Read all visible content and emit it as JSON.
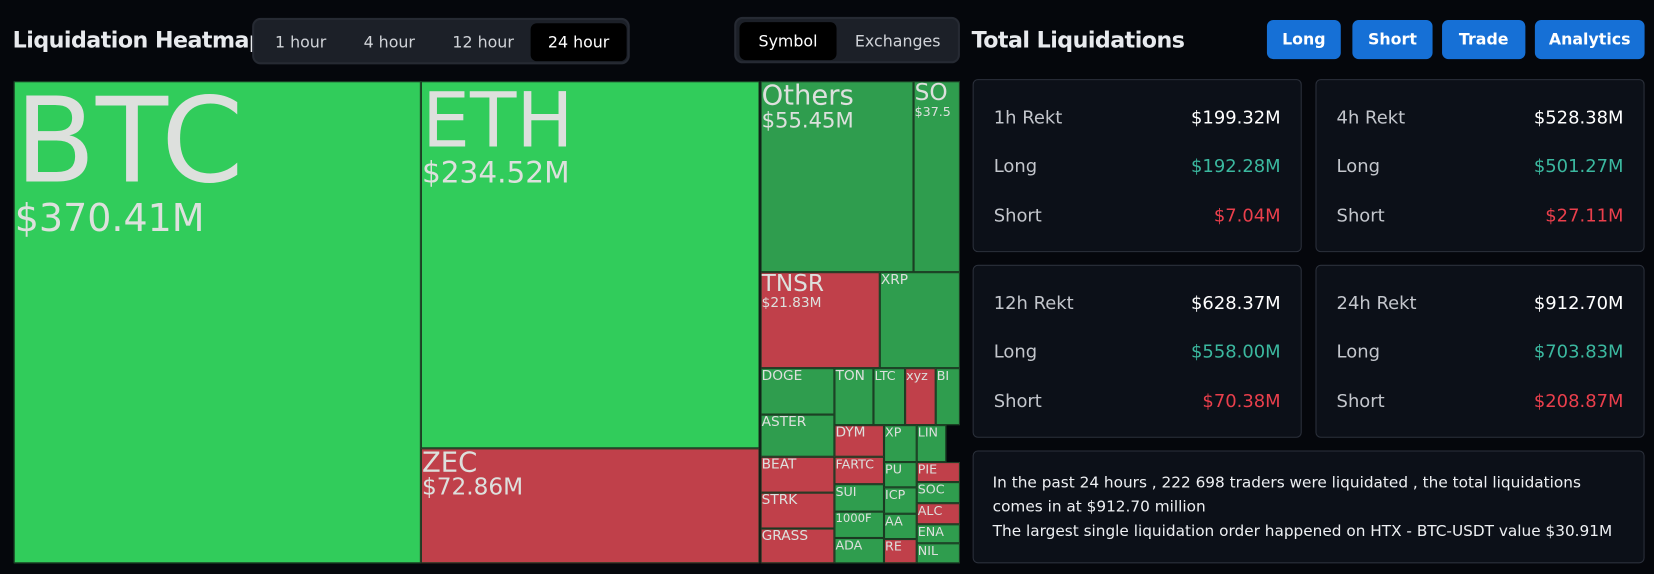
{
  "header": {
    "title": "Liquidation Heatmap",
    "time_tabs": [
      "1 hour",
      "4 hour",
      "12 hour",
      "24 hour"
    ],
    "view_tabs": [
      "Symbol",
      "Exchanges"
    ]
  },
  "treemap": {
    "tiles": [
      {
        "label": "BTC",
        "value": "$370.41M"
      },
      {
        "label": "ETH",
        "value": "$234.52M"
      },
      {
        "label": "ZEC",
        "value": "$72.86M"
      },
      {
        "label": "Others",
        "value": "$55.45M"
      },
      {
        "label": "SO",
        "value": "$37.5"
      },
      {
        "label": "TNSR",
        "value": "$21.83M"
      },
      {
        "label": "XRP"
      },
      {
        "label": "DOGE"
      },
      {
        "label": "ASTER"
      },
      {
        "label": "BEAT"
      },
      {
        "label": "STRK"
      },
      {
        "label": "GRASS"
      },
      {
        "label": "TON"
      },
      {
        "label": "LTC"
      },
      {
        "label": "xyz"
      },
      {
        "label": "BI"
      },
      {
        "label": "DYM"
      },
      {
        "label": "FARTC"
      },
      {
        "label": "SUI"
      },
      {
        "label": "1000F"
      },
      {
        "label": "ADA"
      },
      {
        "label": "XP"
      },
      {
        "label": "LIN"
      },
      {
        "label": "PU"
      },
      {
        "label": "ICP"
      },
      {
        "label": "AA"
      },
      {
        "label": "RE"
      },
      {
        "label": "PIE"
      },
      {
        "label": "SOC"
      },
      {
        "label": "ALC"
      },
      {
        "label": "ENA"
      },
      {
        "label": "NIL"
      }
    ]
  },
  "summary": {
    "title": "Total Liquidations",
    "buttons": [
      "Long",
      "Short",
      "Trade",
      "Analytics"
    ],
    "cards": [
      {
        "title": "1h Rekt",
        "total": "$199.32M",
        "rows": [
          {
            "label": "Long",
            "value": "$192.28M"
          },
          {
            "label": "Short",
            "value": "$7.04M"
          }
        ]
      },
      {
        "title": "4h Rekt",
        "total": "$528.38M",
        "rows": [
          {
            "label": "Long",
            "value": "$501.27M"
          },
          {
            "label": "Short",
            "value": "$27.11M"
          }
        ]
      },
      {
        "title": "12h Rekt",
        "total": "$628.37M",
        "rows": [
          {
            "label": "Long",
            "value": "$558.00M"
          },
          {
            "label": "Short",
            "value": "$70.38M"
          }
        ]
      },
      {
        "title": "24h Rekt",
        "total": "$912.70M",
        "rows": [
          {
            "label": "Long",
            "value": "$703.83M"
          },
          {
            "label": "Short",
            "value": "$208.87M"
          }
        ]
      }
    ],
    "note": [
      "In the past 24 hours , 222 698 traders were liquidated , the total liquidations comes in at $912.70 million",
      "The largest single liquidation order happened on HTX - BTC-USDT value $30.91M"
    ]
  }
}
